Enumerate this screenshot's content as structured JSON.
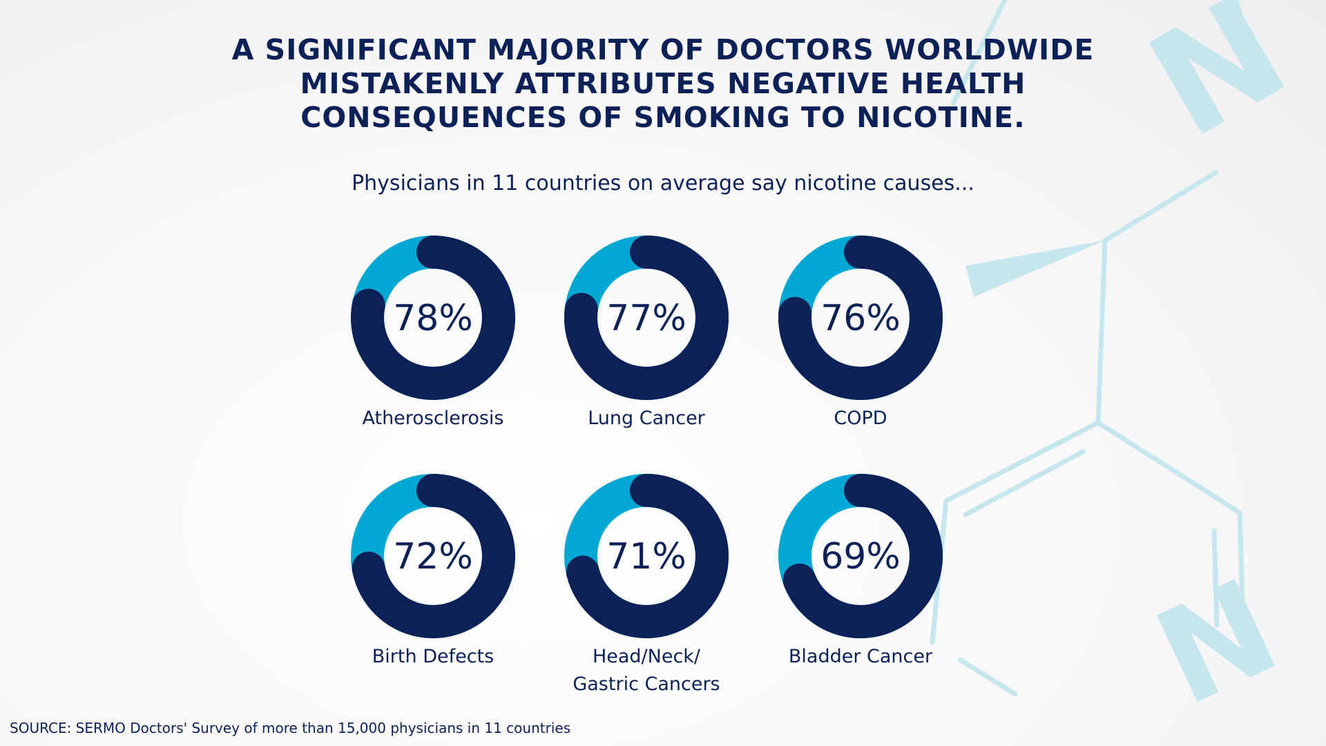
{
  "title_lines": [
    "A SIGNIFICANT MAJORITY OF DOCTORS WORLDWIDE",
    "MISTAKENLY ATTRIBUTES NEGATIVE HEALTH",
    "CONSEQUENCES OF SMOKING TO NICOTINE."
  ],
  "subtitle": "Physicians in 11 countries on average say nicotine causes...",
  "source": "SOURCE: SERMO Doctors' Survey of more than 15,000 physicians in 11 countries",
  "colors": {
    "filled": "#0b2157",
    "remainder": "#00a9d4",
    "molecule": "#c5e5ef"
  },
  "background_letters": [
    "N",
    "N"
  ],
  "chart_data": {
    "type": "pie",
    "style": "donut",
    "categories": [
      "Atherosclerosis",
      "Lung Cancer",
      "COPD",
      "Birth Defects",
      "Head/Neck/\nGastric Cancers",
      "Bladder Cancer"
    ],
    "values": [
      78,
      77,
      76,
      72,
      71,
      69
    ],
    "value_labels": [
      "78%",
      "77%",
      "76%",
      "72%",
      "71%",
      "69%"
    ],
    "unit": "%"
  }
}
